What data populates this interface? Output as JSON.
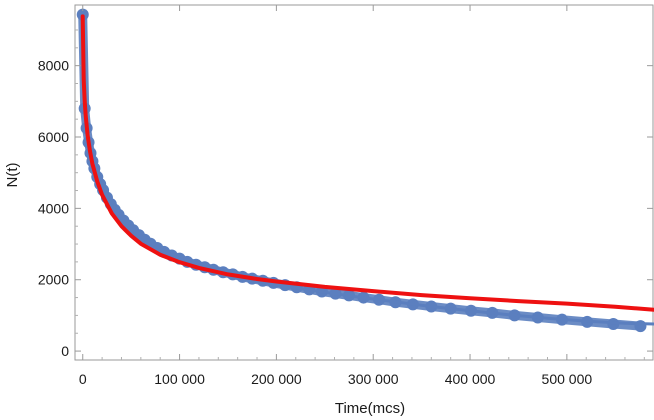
{
  "chart_data": {
    "type": "scatter",
    "xlabel": "Time(mcs)",
    "ylabel": "N(t)",
    "xlim": [
      -8000,
      590000
    ],
    "ylim": [
      -250,
      9700
    ],
    "grid": false,
    "x_ticks": [
      0,
      100000,
      200000,
      300000,
      400000,
      500000
    ],
    "x_tick_labels": [
      "0",
      "100 000",
      "200 000",
      "300 000",
      "400 000",
      "500 000"
    ],
    "y_ticks": [
      0,
      2000,
      4000,
      6000,
      8000
    ],
    "y_tick_labels": [
      "0",
      "2000",
      "4000",
      "6000",
      "8000"
    ],
    "colors": {
      "points": "#5b7fbf",
      "fit_blue": "#5b7fbf",
      "fit_red": "#ee1111"
    },
    "series": [
      {
        "kind": "points",
        "x": [
          0,
          2000,
          4000,
          6000,
          8000,
          10000,
          12000,
          15000,
          18000,
          21000,
          25000,
          29000,
          33000,
          37000,
          42000,
          47000,
          52000,
          58000,
          64000,
          70000,
          77000,
          84000,
          92000,
          100000,
          108000,
          117000,
          126000,
          135000,
          145000,
          155000,
          165000,
          175000,
          186000,
          197000,
          209000,
          221000,
          234000,
          247000,
          261000,
          275000,
          290000,
          306000,
          323000,
          341000,
          360000,
          380000,
          401000,
          423000,
          446000,
          470000,
          495000,
          521000,
          548000,
          576000
        ],
        "y": [
          9430,
          6800,
          6250,
          5850,
          5550,
          5320,
          5120,
          4880,
          4680,
          4510,
          4300,
          4120,
          3960,
          3820,
          3660,
          3520,
          3390,
          3250,
          3120,
          3010,
          2890,
          2780,
          2680,
          2590,
          2500,
          2420,
          2350,
          2280,
          2210,
          2150,
          2080,
          2030,
          1970,
          1910,
          1850,
          1790,
          1730,
          1670,
          1610,
          1560,
          1500,
          1440,
          1370,
          1310,
          1250,
          1190,
          1130,
          1070,
          1000,
          940,
          880,
          820,
          760,
          700
        ]
      },
      {
        "kind": "fit-line",
        "color": "#5b7fbf",
        "x": [
          0,
          3000,
          6000,
          10000,
          15000,
          20000,
          30000,
          40000,
          50000,
          60000,
          80000,
          100000,
          120000,
          140000,
          160000,
          180000,
          200000,
          240000,
          280000,
          320000,
          360000,
          400000,
          440000,
          480000,
          520000,
          560000,
          590000
        ],
        "y": [
          9430,
          6450,
          5900,
          5320,
          4880,
          4560,
          4070,
          3720,
          3440,
          3220,
          2870,
          2590,
          2380,
          2200,
          2050,
          1950,
          1850,
          1690,
          1530,
          1390,
          1250,
          1130,
          1020,
          920,
          840,
          780,
          760
        ]
      },
      {
        "kind": "fit-line",
        "color": "#ee1111",
        "x": [
          0,
          1000,
          2000,
          3000,
          5000,
          7500,
          10000,
          15000,
          20000,
          30000,
          40000,
          50000,
          60000,
          80000,
          100000,
          120000,
          150000,
          180000,
          200000,
          250000,
          300000,
          350000,
          400000,
          450000,
          500000,
          550000,
          590000
        ],
        "y": [
          9380,
          7600,
          7000,
          6600,
          6050,
          5600,
          5250,
          4750,
          4380,
          3860,
          3500,
          3230,
          3010,
          2700,
          2490,
          2330,
          2150,
          2020,
          1950,
          1800,
          1680,
          1570,
          1480,
          1400,
          1330,
          1240,
          1160
        ]
      }
    ]
  }
}
